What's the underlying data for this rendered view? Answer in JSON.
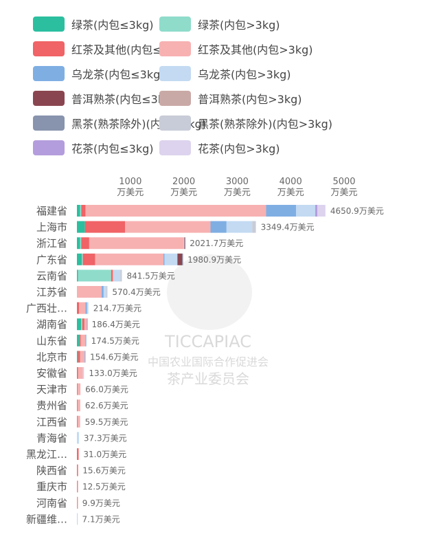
{
  "legend": [
    {
      "label": "绿茶(内包≤3kg)",
      "color": "#2bbf9f"
    },
    {
      "label": "绿茶(内包>3kg)",
      "color": "#8fdccb"
    },
    {
      "label": "红茶及其他(内包≤3kg)",
      "color": "#f06366"
    },
    {
      "label": "红茶及其他(内包>3kg)",
      "color": "#f7b1b1"
    },
    {
      "label": "乌龙茶(内包≤3kg)",
      "color": "#7faee3"
    },
    {
      "label": "乌龙茶(内包>3kg)",
      "color": "#c3daf2"
    },
    {
      "label": "普洱熟茶(内包≤3kg)",
      "color": "#8a4650"
    },
    {
      "label": "普洱熟茶(内包>3kg)",
      "color": "#c9a9a6"
    },
    {
      "label": "黑茶(熟茶除外)(内包≤3kg)",
      "color": "#8893ad"
    },
    {
      "label": "黑茶(熟茶除外)(内包>3kg)",
      "color": "#c8ccd8"
    },
    {
      "label": "花茶(内包≤3kg)",
      "color": "#b49ddd"
    },
    {
      "label": "花茶(内包>3kg)",
      "color": "#ddd3ee"
    }
  ],
  "watermark": {
    "brand": "TICCAPIAC",
    "line1": "中国农业国际合作促进会",
    "line2": "茶产业委员会"
  },
  "chart_data": {
    "type": "bar",
    "orientation": "horizontal",
    "stacked": true,
    "unit": "万美元",
    "xlim": [
      0,
      5000
    ],
    "ticks": [
      {
        "value": 1000,
        "label": "1000",
        "unit": "万美元"
      },
      {
        "value": 2000,
        "label": "2000",
        "unit": "万美元"
      },
      {
        "value": 3000,
        "label": "3000",
        "unit": "万美元"
      },
      {
        "value": 4000,
        "label": "4000",
        "unit": "万美元"
      },
      {
        "value": 5000,
        "label": "5000",
        "unit": "万美元"
      }
    ],
    "categories": [
      "福建省",
      "上海市",
      "浙江省",
      "广东省",
      "云南省",
      "江苏省",
      "广西壮…",
      "湖南省",
      "山东省",
      "北京市",
      "安徽省",
      "天津市",
      "贵州省",
      "江西省",
      "青海省",
      "黑龙江…",
      "陕西省",
      "重庆市",
      "河南省",
      "新疆维…"
    ],
    "total_labels": [
      "4650.9万美元",
      "3349.4万美元",
      "2021.7万美元",
      "1980.9万美元",
      "841.5万美元",
      "570.4万美元",
      "214.7万美元",
      "186.4万美元",
      "174.5万美元",
      "154.6万美元",
      "133.0万美元",
      "66.0万美元",
      "62.6万美元",
      "59.5万美元",
      "37.3万美元",
      "31.0万美元",
      "15.6万美元",
      "12.5万美元",
      "9.9万美元",
      "7.1万美元"
    ],
    "totals": [
      4650.9,
      3349.4,
      2021.7,
      1980.9,
      841.5,
      570.4,
      214.7,
      186.4,
      174.5,
      154.6,
      133.0,
      66.0,
      62.6,
      59.5,
      37.3,
      31.0,
      15.6,
      12.5,
      9.9,
      7.1
    ],
    "series": [
      {
        "name": "绿茶(内包≤3kg)",
        "values": [
          60,
          150,
          60,
          90,
          20,
          0,
          0,
          80,
          40,
          20,
          0,
          0,
          0,
          0,
          0,
          0,
          0,
          0,
          0,
          0
        ]
      },
      {
        "name": "绿茶(内包>3kg)",
        "values": [
          20,
          0,
          20,
          20,
          620,
          0,
          0,
          20,
          0,
          0,
          0,
          0,
          0,
          0,
          0,
          0,
          0,
          0,
          0,
          0
        ]
      },
      {
        "name": "红茶及其他(内包≤3kg)",
        "values": [
          80,
          750,
          150,
          230,
          30,
          0,
          40,
          40,
          30,
          40,
          20,
          10,
          10,
          10,
          0,
          25,
          12,
          8,
          6,
          0
        ]
      },
      {
        "name": "红茶及其他(内包>3kg)",
        "values": [
          3380,
          1600,
          1770,
          1280,
          20,
          460,
          120,
          46,
          90,
          85,
          93,
          56,
          52.6,
          49.5,
          0,
          6,
          3.6,
          4.5,
          3.9,
          0
        ]
      },
      {
        "name": "乌龙茶(内包≤3kg)",
        "values": [
          560,
          300,
          0,
          20,
          0,
          40,
          30,
          0,
          14.5,
          9.6,
          0,
          0,
          0,
          0,
          0,
          0,
          0,
          0,
          0,
          0
        ]
      },
      {
        "name": "乌龙茶(内包>3kg)",
        "values": [
          360,
          480,
          11.7,
          240.9,
          121.5,
          50,
          24.7,
          0,
          0,
          0,
          20,
          0,
          0,
          0,
          37.3,
          0,
          0,
          0,
          0,
          7.1
        ]
      },
      {
        "name": "普洱熟茶(内包≤3kg)",
        "values": [
          0,
          0,
          10,
          90,
          0,
          0,
          0,
          0,
          0,
          0,
          0,
          0,
          0,
          0,
          0,
          0,
          0,
          0,
          0,
          0
        ]
      },
      {
        "name": "普洱熟茶(内包>3kg)",
        "values": [
          0,
          0,
          0,
          0,
          0,
          0,
          0,
          0,
          0,
          0,
          0,
          0,
          0,
          0,
          0,
          0,
          0,
          0,
          0,
          0
        ]
      },
      {
        "name": "黑茶(熟茶除外)(内包≤3kg)",
        "values": [
          0,
          0,
          0,
          10,
          0,
          0,
          0,
          0,
          0,
          0,
          0,
          0,
          0,
          0,
          0,
          0,
          0,
          0,
          0,
          0
        ]
      },
      {
        "name": "黑茶(熟茶除外)(内包>3kg)",
        "values": [
          0,
          69.4,
          0,
          0,
          30,
          20.4,
          0,
          0,
          0,
          0,
          0,
          0,
          0,
          0,
          0,
          0,
          0,
          0,
          0,
          0
        ]
      },
      {
        "name": "花茶(内包≤3kg)",
        "values": [
          40.9,
          0,
          0,
          0,
          0,
          0,
          0,
          0.4,
          0,
          0,
          0,
          0,
          0,
          0,
          0,
          0,
          0,
          0,
          0,
          0
        ]
      },
      {
        "name": "花茶(内包>3kg)",
        "values": [
          150,
          0,
          0,
          0,
          0,
          0,
          0,
          0,
          0,
          0,
          0,
          0,
          0,
          0,
          0,
          0,
          0,
          0,
          0,
          0
        ]
      }
    ]
  }
}
